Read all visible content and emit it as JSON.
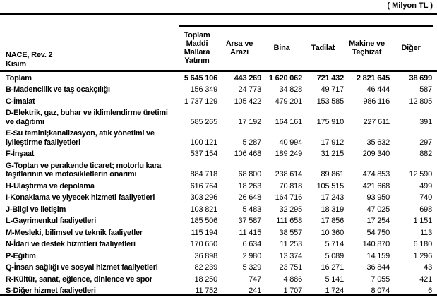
{
  "unit_label": "( Milyon TL )",
  "table": {
    "id_header": {
      "line1": "NACE, Rev. 2",
      "line2": "Kısım"
    },
    "columns": [
      "Toplam Maddi Mallara Yatırım",
      "Arsa ve Arazi",
      "Bina",
      "Tadilat",
      "Makine ve Teçhizat",
      "Diğer"
    ],
    "rows": [
      {
        "label": "Toplam",
        "bold": true,
        "values": [
          "5 645 106",
          "443 269",
          "1 620 062",
          "721 432",
          "2 821 645",
          "38 699"
        ]
      },
      {
        "label": "B-Madencilik ve taş ocakçılığı",
        "bold": false,
        "values": [
          "156 349",
          "24 773",
          "34 828",
          "49 717",
          "46 444",
          "587"
        ]
      },
      {
        "label": "C-İmalat",
        "bold": false,
        "values": [
          "1 737 129",
          "105 422",
          "479 201",
          "153 585",
          "986 116",
          "12 805"
        ]
      },
      {
        "label": "D-Elektrik, gaz, buhar ve iklimlendirme üretimi ve dağıtımı",
        "bold": false,
        "values": [
          "585 265",
          "17 192",
          "164 161",
          "175 910",
          "227 611",
          "391"
        ]
      },
      {
        "label": "E-Su temini;kanalizasyon, atık yönetimi ve iyileştirme faaliyetleri",
        "bold": false,
        "values": [
          "100 121",
          "5 287",
          "40 994",
          "17 912",
          "35 632",
          "297"
        ]
      },
      {
        "label": "F-İnşaat",
        "bold": false,
        "values": [
          "537 154",
          "106 468",
          "189 249",
          "31 215",
          "209 340",
          "882"
        ]
      },
      {
        "label": "G-Toptan ve perakende ticaret; motorlu kara taşıtlarının ve motosikletlerin onarımı",
        "bold": false,
        "values": [
          "884 718",
          "68 800",
          "238 614",
          "89 861",
          "474 853",
          "12 590"
        ]
      },
      {
        "label": "H-Ulaştırma ve depolama",
        "bold": false,
        "values": [
          "616 764",
          "18 263",
          "70 818",
          "105 515",
          "421 668",
          "499"
        ]
      },
      {
        "label": "I-Konaklama ve yiyecek hizmeti faaliyetleri",
        "bold": false,
        "values": [
          "303 296",
          "26 648",
          "164 716",
          "17 243",
          "93 950",
          "740"
        ]
      },
      {
        "label": "J-Bilgi ve iletişim",
        "bold": false,
        "values": [
          "103 821",
          "5 483",
          "32 295",
          "18 319",
          "47 025",
          "698"
        ]
      },
      {
        "label": "L-Gayrimenkul faaliyetleri",
        "bold": false,
        "values": [
          "185 506",
          "37 587",
          "111 658",
          "17 856",
          "17 254",
          "1 151"
        ]
      },
      {
        "label": "M-Mesleki, bilimsel ve teknik faaliyetler",
        "bold": false,
        "values": [
          "115 194",
          "11 415",
          "38 557",
          "10 360",
          "54 750",
          "113"
        ]
      },
      {
        "label": "N-İdari ve destek hizmtleri faaliyetleri",
        "bold": false,
        "values": [
          "170 650",
          "6 634",
          "11 253",
          "5 714",
          "140 870",
          "6 180"
        ]
      },
      {
        "label": "P-Eğitim",
        "bold": false,
        "values": [
          "36 898",
          "2 980",
          "13 374",
          "5 089",
          "14 159",
          "1 296"
        ]
      },
      {
        "label": "Q-İnsan sağlığı ve sosyal hizmet faaliyetleri",
        "bold": false,
        "values": [
          "82 239",
          "5 329",
          "23 751",
          "16 271",
          "36 844",
          "43"
        ]
      },
      {
        "label": "R-Kültür, sanat, eğlence, dinlence ve spor",
        "bold": false,
        "values": [
          "18 250",
          "747",
          "4 886",
          "5 141",
          "7 055",
          "421"
        ]
      },
      {
        "label": "S-Diğer hizmet faaliyetleri",
        "bold": false,
        "values": [
          "11 752",
          "241",
          "1 707",
          "1 724",
          "8 074",
          "6"
        ]
      }
    ]
  }
}
